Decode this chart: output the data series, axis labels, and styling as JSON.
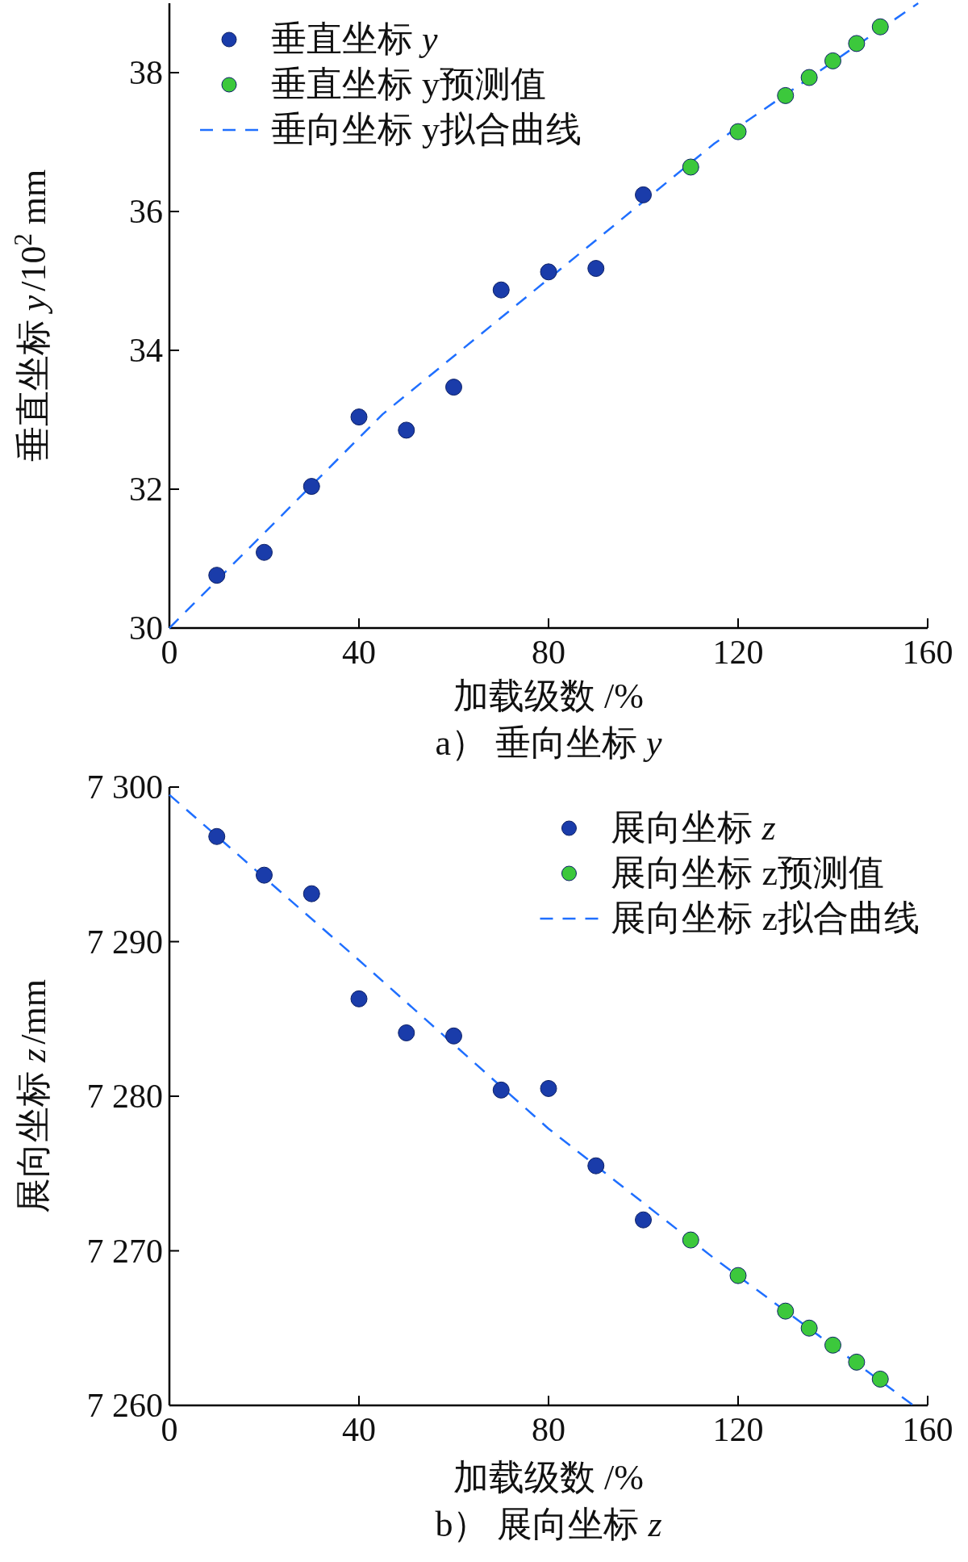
{
  "chart_data": [
    {
      "type": "scatter",
      "title": "a） 垂向坐标 *y*",
      "xlabel": "加载级数 /%",
      "ylabel": "垂直坐标 *y*/10$^{2}$ mm",
      "xlim": [
        0,
        160
      ],
      "ylim": [
        30,
        39
      ],
      "xticks": [
        0,
        40,
        80,
        120,
        160
      ],
      "yticks": [
        30,
        32,
        34,
        36,
        38
      ],
      "legend": "top left",
      "series": [
        {
          "name": "垂直坐标 *y*",
          "type": "scatter",
          "marker": "circle",
          "color": "#1a3caa",
          "x": [
            10,
            20,
            30,
            40,
            50,
            60,
            70,
            80,
            90,
            100
          ],
          "values": [
            30.76,
            31.09,
            32.04,
            33.04,
            32.85,
            33.47,
            34.87,
            35.13,
            35.18,
            36.24
          ]
        },
        {
          "name": "垂直坐标 y预测值",
          "type": "scatter",
          "marker": "circle",
          "color": "#3cc83c",
          "x": [
            110,
            120,
            130,
            135,
            140,
            145,
            150
          ],
          "values": [
            36.64,
            37.15,
            37.67,
            37.93,
            38.17,
            38.42,
            38.66
          ]
        },
        {
          "name": "垂向坐标 y拟合曲线",
          "type": "line",
          "marker": "none",
          "line_style": "dashed",
          "color": "#1f6fff",
          "x": [
            0,
            45,
            75,
            115,
            158
          ],
          "values": [
            30.0,
            33.08,
            34.75,
            36.98,
            39.0
          ]
        }
      ]
    },
    {
      "type": "scatter",
      "title": "b） 展向坐标 *z*",
      "xlabel": "加载级数 /%",
      "ylabel": "展向坐标 *z*/mm",
      "xlim": [
        0,
        160
      ],
      "ylim": [
        7260,
        7300
      ],
      "xticks": [
        0,
        40,
        80,
        120,
        160
      ],
      "yticks": [
        {
          "value": 7260,
          "label": "7 260"
        },
        {
          "value": 7270,
          "label": "7 270"
        },
        {
          "value": 7280,
          "label": "7 280"
        },
        {
          "value": 7290,
          "label": "7 290"
        },
        {
          "value": 7300,
          "label": "7 300"
        }
      ],
      "legend": "top right",
      "series": [
        {
          "name": "展向坐标 *z*",
          "type": "scatter",
          "marker": "circle",
          "color": "#1a3caa",
          "x": [
            10,
            20,
            30,
            40,
            50,
            60,
            70,
            80,
            90,
            100
          ],
          "values": [
            7296.8,
            7294.3,
            7293.1,
            7286.3,
            7284.1,
            7283.9,
            7280.4,
            7280.5,
            7275.5,
            7272.0
          ]
        },
        {
          "name": "展向坐标 z预测值",
          "type": "scatter",
          "marker": "circle",
          "color": "#3cc83c",
          "x": [
            110,
            120,
            130,
            135,
            140,
            145,
            150
          ],
          "values": [
            7270.7,
            7268.4,
            7266.1,
            7265.0,
            7263.9,
            7262.8,
            7261.7
          ]
        },
        {
          "name": "展向坐标 z拟合曲线",
          "type": "line",
          "marker": "none",
          "line_style": "dashed",
          "color": "#1f6fff",
          "x": [
            0,
            40,
            80,
            115,
            157
          ],
          "values": [
            7299.5,
            7288.8,
            7277.9,
            7269.5,
            7260.0
          ]
        }
      ]
    }
  ]
}
